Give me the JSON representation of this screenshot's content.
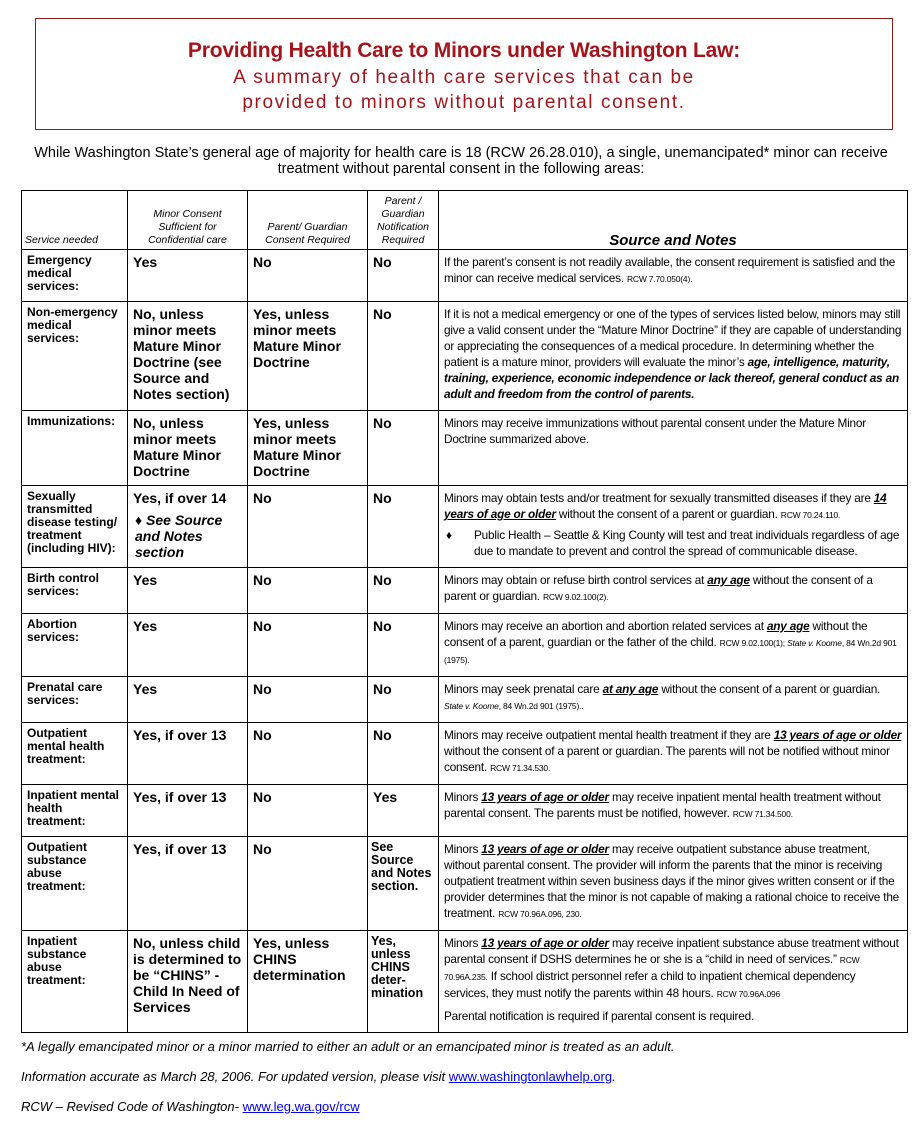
{
  "title": {
    "main": "Providing Health Care to Minors under Washington Law:",
    "sub_line1": "A summary of health care services that can be",
    "sub_line2": "provided to minors without parental consent."
  },
  "intro": "While Washington State’s general age of majority for health care is 18 (RCW 26.28.010), a single, unemancipated* minor can receive treatment without parental consent in the following areas:",
  "table": {
    "headers": {
      "service": "Service needed",
      "minor_consent": "Minor Consent Sufficient for Confidential care",
      "parent_consent": "Parent/ Guardian Consent Required",
      "notification": "Parent / Guardian Notification Required",
      "notes": "Source and Notes"
    },
    "rows": [
      {
        "service": "Emergency medical services:",
        "minor": "Yes",
        "parent": "No",
        "notify": "No",
        "notes": [
          [
            [
              "t",
              "If the parent’s consent is not readily available, the consent requirement is satisfied and the minor can receive medical services. "
            ],
            [
              "cite",
              "RCW 7.70.050(4)."
            ]
          ]
        ]
      },
      {
        "service": "Non-emergency medical services:",
        "minor": "No, unless minor meets Mature Minor Doctrine (see Source and Notes section)",
        "parent": "Yes, unless minor meets Mature Minor Doctrine",
        "notify": "No",
        "notes": [
          [
            [
              "t",
              "If it is not a medical emergency or one of the types of services listed below, minors may still give a valid consent under the “Mature Minor Doctrine” if they are capable of understanding or appreciating the consequences of a medical procedure. In determining whether the patient is a mature minor, providers will evaluate the minor’s "
            ],
            [
              "bi",
              "age, intelligence, maturity, training, experience, economic independence or lack thereof, general conduct as an adult and freedom from the control of parents."
            ]
          ]
        ]
      },
      {
        "service": "Immunizations:",
        "minor": "No, unless minor meets Mature Minor Doctrine",
        "parent": "Yes, unless minor meets Mature Minor Doctrine",
        "notify": "No",
        "notes": [
          [
            [
              "t",
              "Minors may receive immunizations without parental consent under the Mature Minor Doctrine summarized above."
            ]
          ]
        ]
      },
      {
        "service": "Sexually transmitted disease testing/ treatment (including HIV):",
        "minor": "Yes, if over 14",
        "minor_note": "♦ See Source and Notes section",
        "parent": "No",
        "notify": "No",
        "notes": [
          [
            [
              "t",
              "Minors may obtain tests and/or treatment for sexually transmitted diseases if they are "
            ],
            [
              "em",
              "14 years of age or older"
            ],
            [
              "t",
              " without the consent of a parent or guardian. "
            ],
            [
              "cite",
              "RCW 70.24.110."
            ]
          ]
        ],
        "bullet": {
          "marker": "♦",
          "text": "Public Health – Seattle & King County will test and treat individuals regardless of age due to mandate to prevent and control the spread of communicable disease."
        }
      },
      {
        "service": "Birth control services:",
        "minor": "Yes",
        "parent": "No",
        "notify": "No",
        "notes": [
          [
            [
              "t",
              "Minors may obtain or refuse birth control services at "
            ],
            [
              "em",
              "any age"
            ],
            [
              "t",
              " without the consent of a parent or guardian. "
            ],
            [
              "cite",
              "RCW 9.02.100(2)."
            ]
          ]
        ]
      },
      {
        "service": "Abortion services:",
        "minor": "Yes",
        "parent": "No",
        "notify": "No",
        "notes": [
          [
            [
              "t",
              "Minors may receive an abortion and abortion related services at "
            ],
            [
              "em",
              "any age"
            ],
            [
              "t",
              " without the consent of a parent, guardian or the father of the child. "
            ],
            [
              "cite",
              "RCW 9.02.100(1); "
            ],
            [
              "citei",
              "State v. Koome"
            ],
            [
              "cite",
              ", 84 Wn.2d 901 (1975)."
            ]
          ]
        ]
      },
      {
        "service": "Prenatal care services:",
        "minor": "Yes",
        "parent": "No",
        "notify": "No",
        "notes": [
          [
            [
              "t",
              "Minors may seek prenatal care "
            ],
            [
              "em",
              "at any age"
            ],
            [
              "t",
              " without the consent of a parent or guardian. "
            ],
            [
              "citei",
              "State v. Koome"
            ],
            [
              "cite",
              ", 84 Wn.2d 901 (1975).."
            ]
          ]
        ]
      },
      {
        "service": "Outpatient mental health treatment:",
        "minor": "Yes, if over 13",
        "parent": "No",
        "notify": "No",
        "notes": [
          [
            [
              "t",
              "Minors may receive outpatient mental health treatment if they are "
            ],
            [
              "em",
              "13 years of age or older"
            ],
            [
              "t",
              " without the consent of a parent or guardian.  The parents will not be notified without minor consent. "
            ],
            [
              "cite",
              "RCW 71.34.530."
            ]
          ]
        ]
      },
      {
        "service": "Inpatient mental health treatment:",
        "minor": "Yes, if over 13",
        "parent": "No",
        "notify": "Yes",
        "notes": [
          [
            [
              "t",
              "Minors "
            ],
            [
              "em",
              "13 years of age or older"
            ],
            [
              "t",
              " may receive inpatient mental health treatment without parental consent.  The parents must be notified, however. "
            ],
            [
              "cite",
              "RCW 71.34.500."
            ]
          ]
        ]
      },
      {
        "service": "Outpatient substance abuse treatment:",
        "minor": "Yes, if over 13",
        "parent": "No",
        "notify": "See Source and Notes section.",
        "notes": [
          [
            [
              "t",
              "Minors "
            ],
            [
              "em",
              "13 years of age or older"
            ],
            [
              "t",
              " may receive outpatient substance abuse treatment, without parental consent. The provider will inform the parents that the minor is receiving outpatient treatment within seven business days if the minor gives written consent or if the provider determines that the minor is not capable of making a rational choice to receive the treatment. "
            ],
            [
              "cite",
              "RCW 70.96A.096, 230."
            ]
          ]
        ]
      },
      {
        "service": "Inpatient substance abuse treatment:",
        "minor": "No, unless child is determined to be “CHINS” - Child In Need of Services",
        "parent": "Yes, unless CHINS determination",
        "notify": "Yes, unless CHINS deter-mination",
        "notes": [
          [
            [
              "t",
              "Minors "
            ],
            [
              "em",
              "13 years of age or older"
            ],
            [
              "t",
              " may receive inpatient substance abuse treatment without parental consent if DSHS determines he or she is a “child in need of services.” "
            ],
            [
              "cite",
              "RCW 70.96A.235."
            ],
            [
              "t",
              "  If school district personnel refer a child to inpatient chemical dependency services, they must notify the parents within 48 hours. "
            ],
            [
              "cite",
              "RCW 70.96A.096"
            ]
          ],
          [
            [
              "t",
              "Parental notification is required if parental consent is required."
            ]
          ]
        ]
      }
    ]
  },
  "footer": {
    "emancipated": "*A legally emancipated minor or a minor married to either an adult or an emancipated minor is treated as an adult.",
    "accuracy": "Information accurate as March 28, 2006. For updated version, please visit ",
    "accuracy_link": "www.washingtonlawhelp.org",
    "accuracy_end": ".",
    "rcw": "RCW – Revised Code of Washington- ",
    "rcw_link": "www.leg.wa.gov/rcw"
  },
  "colors": {
    "title_red": "#a3141b",
    "border_red": "#8b1a1a",
    "link": "#0000ee"
  }
}
